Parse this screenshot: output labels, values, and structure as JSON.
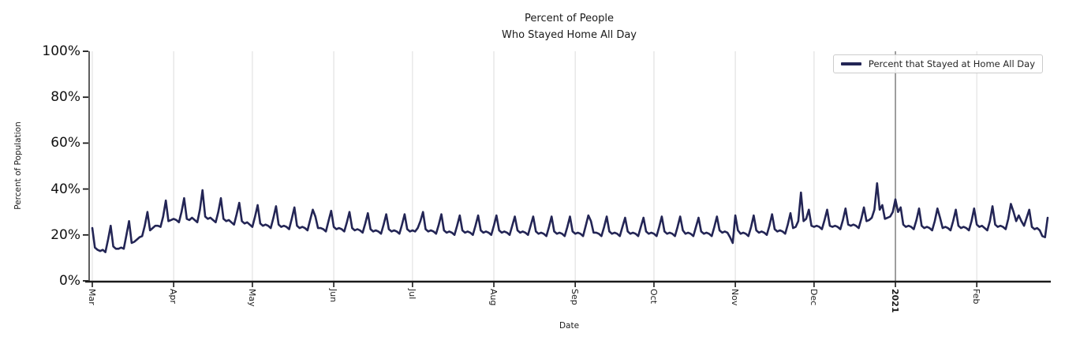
{
  "chart_data": {
    "type": "line",
    "title_lines": [
      "Percent of People",
      "Who Stayed Home All Day"
    ],
    "xlabel": "Date",
    "ylabel": "Percent of Population",
    "ylim": [
      0,
      100
    ],
    "y_ticks": [
      {
        "value": 0,
        "label": "0%"
      },
      {
        "value": 20,
        "label": "20%"
      },
      {
        "value": 40,
        "label": "40%"
      },
      {
        "value": 60,
        "label": "60%"
      },
      {
        "value": 80,
        "label": "80%"
      },
      {
        "value": 100,
        "label": "100%"
      }
    ],
    "x_ticks": [
      {
        "label": "Mar",
        "day": 0
      },
      {
        "label": "Apr",
        "day": 31
      },
      {
        "label": "May",
        "day": 61
      },
      {
        "label": "Jun",
        "day": 92
      },
      {
        "label": "Jul",
        "day": 122
      },
      {
        "label": "Aug",
        "day": 153
      },
      {
        "label": "Sep",
        "day": 184
      },
      {
        "label": "Oct",
        "day": 214
      },
      {
        "label": "Nov",
        "day": 245
      },
      {
        "label": "Dec",
        "day": 275
      },
      {
        "label": "2021",
        "day": 306,
        "bold": true
      },
      {
        "label": "Feb",
        "day": 337
      }
    ],
    "annotation_vline": {
      "day": 306,
      "color": "#404040"
    },
    "grid": "vertical-month-gridlines",
    "legend": {
      "position": "upper-right",
      "label": "Percent that Stayed at Home All Day"
    },
    "colors": {
      "line": "#232555",
      "grid": "#dcdcdc",
      "axis": "#1a1a1a"
    },
    "series": [
      {
        "name": "Percent that Stayed at Home All Day",
        "start_date": "2020-03-01",
        "frequency": "daily",
        "unit": "percent",
        "values": [
          23,
          14.5,
          13.5,
          13,
          13.5,
          12.5,
          18,
          24,
          15,
          14,
          14,
          14.5,
          14,
          20,
          26,
          16.5,
          17,
          18,
          19,
          19.5,
          24,
          30,
          22,
          23,
          24,
          24,
          23.5,
          28,
          35,
          26,
          26.5,
          27,
          26.5,
          25.5,
          30,
          36,
          27,
          26.5,
          27.5,
          26.5,
          25.5,
          31,
          39.5,
          28,
          27,
          27.5,
          26.5,
          25.5,
          30,
          36,
          27,
          26,
          26.5,
          25.5,
          24.5,
          29,
          34,
          26,
          25,
          25.5,
          24.5,
          23.5,
          28,
          33,
          25,
          24,
          24.5,
          24,
          23,
          27.5,
          32.5,
          24.5,
          23.5,
          24,
          23.5,
          22.5,
          27,
          32,
          24,
          23,
          23.5,
          23,
          22,
          26.5,
          31,
          28,
          23,
          23,
          22.5,
          21.5,
          26,
          30.5,
          23.5,
          22.5,
          23,
          22.5,
          21.5,
          25.5,
          30,
          23,
          22,
          22.5,
          22,
          21,
          25,
          29.5,
          22.5,
          21.5,
          22,
          21.5,
          20.5,
          24.5,
          29,
          22.5,
          21.5,
          22,
          21.5,
          20.5,
          24.5,
          29,
          22.5,
          21.5,
          22,
          21.5,
          23,
          26,
          30,
          22.5,
          21.5,
          22,
          21.5,
          20.5,
          24.5,
          29,
          22,
          21,
          21.5,
          21,
          20,
          24,
          28.5,
          22,
          21,
          21.5,
          21,
          20,
          24,
          28.5,
          22,
          21,
          21.5,
          21,
          20,
          24,
          28.5,
          22,
          21,
          21.5,
          21,
          20,
          24,
          28,
          22,
          21,
          21.5,
          21,
          20,
          24,
          28,
          21.5,
          20.5,
          21,
          20.5,
          19.5,
          23.5,
          28,
          21.5,
          20.5,
          21,
          20.5,
          19.5,
          23.5,
          28,
          21.5,
          20.5,
          21,
          20.5,
          19.5,
          24,
          28.5,
          26,
          21,
          21,
          20.5,
          19.5,
          23.5,
          28,
          21.5,
          20.5,
          21,
          20.5,
          19.5,
          23.5,
          27.5,
          21.5,
          20.5,
          21,
          20.5,
          19.5,
          23.5,
          27.5,
          21.5,
          20.5,
          21,
          20.5,
          19.5,
          23.5,
          28,
          21.5,
          20.5,
          21,
          20.5,
          19.5,
          23.5,
          28,
          22,
          20.5,
          21,
          20.5,
          19.5,
          23.5,
          27.5,
          21.5,
          20.5,
          21,
          20.5,
          19.5,
          23.5,
          28,
          22,
          21,
          21.5,
          21,
          19,
          16.5,
          28.5,
          22,
          20.5,
          21,
          20.5,
          19.5,
          23.5,
          28.5,
          22,
          21,
          21.5,
          21,
          20,
          24,
          29,
          22.5,
          21.5,
          22,
          21.5,
          20.5,
          24.5,
          29.5,
          23,
          23.5,
          26,
          38.5,
          26,
          27,
          31,
          24,
          23.5,
          24,
          23.5,
          22.5,
          26.5,
          31,
          24,
          23.5,
          24,
          23.5,
          22.5,
          26.5,
          31.5,
          24.5,
          24,
          24.5,
          24,
          23,
          27,
          32,
          26,
          26.5,
          27.5,
          31,
          42.5,
          31,
          33,
          27,
          27.5,
          28,
          30,
          35.5,
          30,
          32,
          24.5,
          23.5,
          24,
          23.5,
          22.5,
          26.5,
          31.5,
          24,
          23,
          23.5,
          23,
          22,
          26,
          31.5,
          27.5,
          23,
          23.5,
          23,
          22,
          26,
          31,
          24,
          23,
          23.5,
          23,
          22,
          26,
          31.5,
          24.5,
          23.5,
          24,
          23,
          22,
          26,
          32.5,
          24.5,
          23.5,
          24,
          23.5,
          22.5,
          27,
          33.5,
          30,
          26,
          28.5,
          26,
          24,
          27.5,
          31,
          23.5,
          22.5,
          23,
          22,
          19.5,
          19,
          27.5
        ]
      }
    ]
  }
}
